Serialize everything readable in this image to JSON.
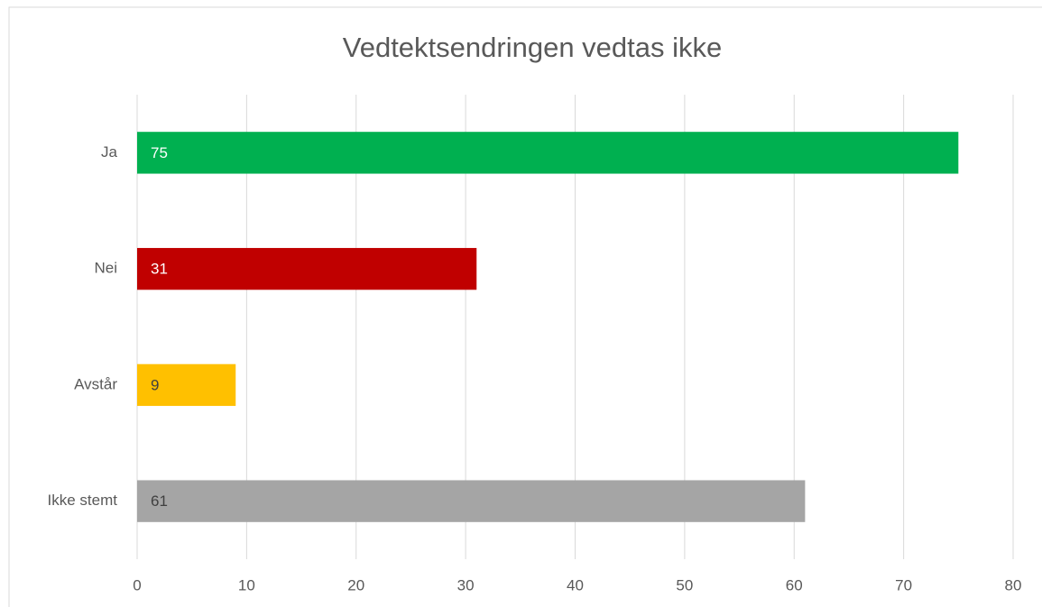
{
  "chart_data": {
    "type": "bar",
    "orientation": "horizontal",
    "title": "Vedtektsendringen vedtas ikke",
    "categories": [
      "Ja",
      "Nei",
      "Avstår",
      "Ikke stemt"
    ],
    "values": [
      75,
      31,
      9,
      61
    ],
    "colors": [
      "#00b050",
      "#c00000",
      "#ffc000",
      "#a5a5a5"
    ],
    "xlim": [
      0,
      80
    ],
    "xticks": [
      0,
      10,
      20,
      30,
      40,
      50,
      60,
      70,
      80
    ],
    "grid": true
  }
}
